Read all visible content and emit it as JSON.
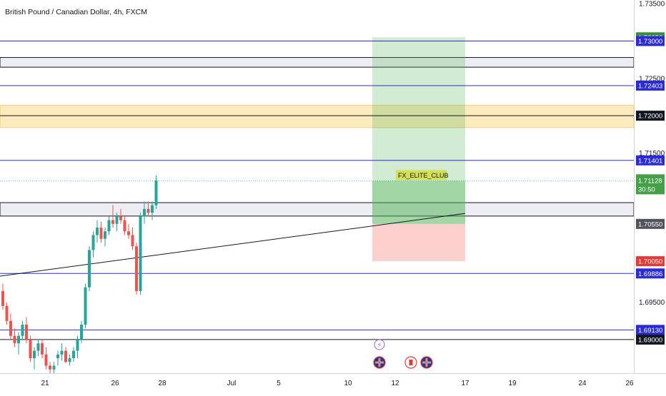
{
  "header": {
    "symbol_title": "British Pound / Canadian Dollar, 4h, FXCM"
  },
  "colors": {
    "up_candle": "#26a69a",
    "down_candle": "#ef5350",
    "blue_level": "#2b2bd6",
    "black_level": "#131722",
    "target_zone": "#4caf50",
    "stop_zone": "#f44336",
    "supply_zone": "#f5c542",
    "highlight_label": "#d4e157"
  },
  "chart_data": {
    "type": "candlestick",
    "title": "British Pound / Canadian Dollar, 4h, FXCM",
    "ylim": [
      1.6855,
      1.7355
    ],
    "y_ticks": [
      "1.69500",
      "1.71500",
      "1.72500",
      "1.73500"
    ],
    "x_ticks": [
      "21",
      "26",
      "28",
      "Jul",
      "5",
      "10",
      "12",
      "17",
      "19",
      "24",
      "26"
    ],
    "blue_levels": [
      {
        "label": "1.73000",
        "value": 1.73
      },
      {
        "label": "1.72403",
        "value": 1.72403
      },
      {
        "label": "1.71401",
        "value": 1.71401
      },
      {
        "label": "1.69886",
        "value": 1.69886
      },
      {
        "label": "1.69130",
        "value": 1.6913
      }
    ],
    "black_levels": [
      {
        "label": "1.72000",
        "value": 1.72
      },
      {
        "label": "1.69000",
        "value": 1.69
      }
    ],
    "gray_zones": [
      {
        "from": 1.7265,
        "to": 1.7278
      },
      {
        "from": 1.70655,
        "to": 1.70835
      }
    ],
    "supply_zone": {
      "from": 1.7184,
      "to": 1.7214
    },
    "trend_line": {
      "from": 1.6985,
      "to": 1.7069
    },
    "position": {
      "type": "long",
      "target_label": "1.73050",
      "target": 1.7305,
      "entry_label": "1.70550",
      "entry": 1.7055,
      "stop_label": "1.70050",
      "stop": 1.7005
    },
    "last_price": {
      "label": "1.71128",
      "value": 1.71128,
      "countdown": "30:50"
    },
    "annotation": "FX_ELITE_CLUB",
    "candles": [
      {
        "o": 1.6965,
        "h": 1.6975,
        "l": 1.694,
        "c": 1.6945
      },
      {
        "o": 1.6945,
        "h": 1.695,
        "l": 1.692,
        "c": 1.6925
      },
      {
        "o": 1.6925,
        "h": 1.6935,
        "l": 1.69,
        "c": 1.6905
      },
      {
        "o": 1.6905,
        "h": 1.6915,
        "l": 1.689,
        "c": 1.6895
      },
      {
        "o": 1.6895,
        "h": 1.691,
        "l": 1.688,
        "c": 1.6905
      },
      {
        "o": 1.6905,
        "h": 1.6925,
        "l": 1.69,
        "c": 1.692
      },
      {
        "o": 1.692,
        "h": 1.693,
        "l": 1.6895,
        "c": 1.69
      },
      {
        "o": 1.69,
        "h": 1.6905,
        "l": 1.687,
        "c": 1.6875
      },
      {
        "o": 1.6875,
        "h": 1.689,
        "l": 1.686,
        "c": 1.6885
      },
      {
        "o": 1.6885,
        "h": 1.69,
        "l": 1.6878,
        "c": 1.6895
      },
      {
        "o": 1.6895,
        "h": 1.69,
        "l": 1.6875,
        "c": 1.688
      },
      {
        "o": 1.688,
        "h": 1.689,
        "l": 1.686,
        "c": 1.6865
      },
      {
        "o": 1.6865,
        "h": 1.687,
        "l": 1.6855,
        "c": 1.686
      },
      {
        "o": 1.686,
        "h": 1.687,
        "l": 1.6855,
        "c": 1.6865
      },
      {
        "o": 1.6875,
        "h": 1.6885,
        "l": 1.6865,
        "c": 1.688
      },
      {
        "o": 1.688,
        "h": 1.6895,
        "l": 1.6872,
        "c": 1.6885
      },
      {
        "o": 1.6885,
        "h": 1.689,
        "l": 1.6868,
        "c": 1.687
      },
      {
        "o": 1.687,
        "h": 1.688,
        "l": 1.6865,
        "c": 1.6875
      },
      {
        "o": 1.6875,
        "h": 1.689,
        "l": 1.687,
        "c": 1.6885
      },
      {
        "o": 1.6885,
        "h": 1.6905,
        "l": 1.6875,
        "c": 1.69
      },
      {
        "o": 1.69,
        "h": 1.6925,
        "l": 1.6895,
        "c": 1.692
      },
      {
        "o": 1.692,
        "h": 1.6975,
        "l": 1.6915,
        "c": 1.697
      },
      {
        "o": 1.697,
        "h": 1.7025,
        "l": 1.6965,
        "c": 1.702
      },
      {
        "o": 1.702,
        "h": 1.7045,
        "l": 1.701,
        "c": 1.704
      },
      {
        "o": 1.704,
        "h": 1.706,
        "l": 1.703,
        "c": 1.705
      },
      {
        "o": 1.705,
        "h": 1.7058,
        "l": 1.703,
        "c": 1.7035
      },
      {
        "o": 1.7035,
        "h": 1.705,
        "l": 1.7025,
        "c": 1.7045
      },
      {
        "o": 1.7045,
        "h": 1.7065,
        "l": 1.704,
        "c": 1.706
      },
      {
        "o": 1.706,
        "h": 1.708,
        "l": 1.705,
        "c": 1.7055
      },
      {
        "o": 1.7055,
        "h": 1.707,
        "l": 1.7045,
        "c": 1.7065
      },
      {
        "o": 1.7065,
        "h": 1.7075,
        "l": 1.7055,
        "c": 1.706
      },
      {
        "o": 1.706,
        "h": 1.7065,
        "l": 1.704,
        "c": 1.7045
      },
      {
        "o": 1.7045,
        "h": 1.7055,
        "l": 1.7035,
        "c": 1.704
      },
      {
        "o": 1.704,
        "h": 1.705,
        "l": 1.702,
        "c": 1.7025
      },
      {
        "o": 1.7025,
        "h": 1.703,
        "l": 1.696,
        "c": 1.6965
      },
      {
        "o": 1.6965,
        "h": 1.707,
        "l": 1.696,
        "c": 1.7065
      },
      {
        "o": 1.7065,
        "h": 1.7085,
        "l": 1.7055,
        "c": 1.7075
      },
      {
        "o": 1.7075,
        "h": 1.7085,
        "l": 1.7065,
        "c": 1.707
      },
      {
        "o": 1.707,
        "h": 1.7085,
        "l": 1.706,
        "c": 1.708
      },
      {
        "o": 1.708,
        "h": 1.712,
        "l": 1.7075,
        "c": 1.7113
      }
    ],
    "events": [
      "lightning",
      "flag-uk",
      "flag-ca",
      "flag-uk"
    ]
  }
}
